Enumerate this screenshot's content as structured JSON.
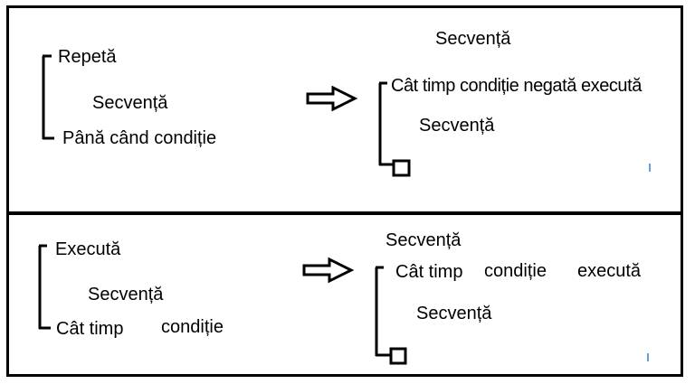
{
  "top": {
    "left": {
      "start": "Repetă",
      "body": "Secvență",
      "end": "Până când condiție"
    },
    "right": {
      "pre": "Secvență",
      "loop_header": "Cât timp condiție negată execută",
      "body": "Secvență"
    }
  },
  "bottom": {
    "left": {
      "start": "Execută",
      "body": "Secvență",
      "end_a": "Cât timp",
      "end_b": "condiție"
    },
    "right": {
      "pre": "Secvență",
      "loop_a": "Cât timp",
      "loop_b": "condiție",
      "loop_c": "execută",
      "body": "Secvență"
    }
  }
}
